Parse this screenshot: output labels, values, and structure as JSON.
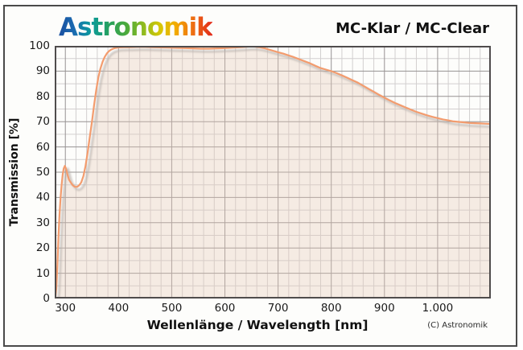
{
  "header": {
    "logo_text": "Astronomik",
    "title": "MC-Klar / MC-Clear"
  },
  "footer": {
    "copyright": "(C) Astronomik"
  },
  "chart_data": {
    "type": "area",
    "title": "MC-Klar / MC-Clear",
    "xlabel": "Wellenlänge / Wavelength [nm]",
    "ylabel": "Transmission [%]",
    "xlim": [
      280,
      1100
    ],
    "ylim": [
      0,
      100
    ],
    "grid": true,
    "x_minor_step": 20,
    "y_minor_step": 5,
    "x_ticks": [
      {
        "value": 300,
        "label": "300"
      },
      {
        "value": 400,
        "label": "400"
      },
      {
        "value": 500,
        "label": "500"
      },
      {
        "value": 600,
        "label": "600"
      },
      {
        "value": 700,
        "label": "700"
      },
      {
        "value": 800,
        "label": "800"
      },
      {
        "value": 900,
        "label": "900"
      },
      {
        "value": 1000,
        "label": "1.000"
      }
    ],
    "y_ticks": [
      {
        "value": 0,
        "label": "0"
      },
      {
        "value": 10,
        "label": "10"
      },
      {
        "value": 20,
        "label": "20"
      },
      {
        "value": 30,
        "label": "30"
      },
      {
        "value": 40,
        "label": "40"
      },
      {
        "value": 50,
        "label": "50"
      },
      {
        "value": 60,
        "label": "60"
      },
      {
        "value": 70,
        "label": "70"
      },
      {
        "value": 80,
        "label": "80"
      },
      {
        "value": 90,
        "label": "90"
      },
      {
        "value": 100,
        "label": "100"
      }
    ],
    "colors": {
      "line": "#f39c6e",
      "shadow": "#b8b0ab",
      "fill": "rgba(229,200,183,0.35)",
      "grid_minor": "#d2cfcf",
      "grid_major": "#969292"
    },
    "series": [
      {
        "name": "MC-Klar / MC-Clear transmission",
        "points": [
          [
            281,
            0
          ],
          [
            283,
            4
          ],
          [
            285,
            13
          ],
          [
            287,
            24
          ],
          [
            289,
            33
          ],
          [
            291,
            40
          ],
          [
            293,
            45
          ],
          [
            295,
            49
          ],
          [
            297,
            51.5
          ],
          [
            299,
            52.5
          ],
          [
            301,
            51.5
          ],
          [
            304,
            49
          ],
          [
            307,
            47
          ],
          [
            310,
            46
          ],
          [
            314,
            44.8
          ],
          [
            318,
            44.2
          ],
          [
            322,
            44.2
          ],
          [
            326,
            44.8
          ],
          [
            330,
            46
          ],
          [
            334,
            48.5
          ],
          [
            338,
            52.5
          ],
          [
            342,
            58
          ],
          [
            346,
            64
          ],
          [
            350,
            70
          ],
          [
            354,
            76.5
          ],
          [
            358,
            82.5
          ],
          [
            362,
            87.5
          ],
          [
            366,
            91
          ],
          [
            370,
            93.7
          ],
          [
            374,
            95.6
          ],
          [
            378,
            97
          ],
          [
            382,
            97.9
          ],
          [
            386,
            98.5
          ],
          [
            390,
            98.9
          ],
          [
            395,
            99.2
          ],
          [
            400,
            99.4
          ],
          [
            410,
            99.5
          ],
          [
            420,
            99.5
          ],
          [
            435,
            99.6
          ],
          [
            450,
            99.6
          ],
          [
            465,
            99.5
          ],
          [
            480,
            99.4
          ],
          [
            495,
            99.3
          ],
          [
            510,
            99.2
          ],
          [
            525,
            99.1
          ],
          [
            540,
            99.0
          ],
          [
            555,
            98.9
          ],
          [
            570,
            98.9
          ],
          [
            585,
            99.0
          ],
          [
            600,
            99.1
          ],
          [
            615,
            99.3
          ],
          [
            630,
            99.5
          ],
          [
            645,
            99.7
          ],
          [
            655,
            99.7
          ],
          [
            665,
            99.5
          ],
          [
            675,
            99.0
          ],
          [
            685,
            98.4
          ],
          [
            695,
            97.8
          ],
          [
            700,
            97.5
          ],
          [
            710,
            96.9
          ],
          [
            720,
            96.2
          ],
          [
            730,
            95.5
          ],
          [
            740,
            94.7
          ],
          [
            750,
            93.9
          ],
          [
            760,
            93.1
          ],
          [
            770,
            92.1
          ],
          [
            780,
            91.2
          ],
          [
            790,
            90.6
          ],
          [
            800,
            90.0
          ],
          [
            810,
            89.2
          ],
          [
            820,
            88.3
          ],
          [
            830,
            87.4
          ],
          [
            840,
            86.4
          ],
          [
            850,
            85.4
          ],
          [
            860,
            84.2
          ],
          [
            870,
            83.0
          ],
          [
            880,
            81.8
          ],
          [
            890,
            80.6
          ],
          [
            900,
            79.5
          ],
          [
            910,
            78.4
          ],
          [
            920,
            77.4
          ],
          [
            930,
            76.5
          ],
          [
            940,
            75.6
          ],
          [
            950,
            74.7
          ],
          [
            960,
            73.9
          ],
          [
            970,
            73.2
          ],
          [
            980,
            72.5
          ],
          [
            990,
            71.9
          ],
          [
            1000,
            71.4
          ],
          [
            1010,
            70.9
          ],
          [
            1020,
            70.5
          ],
          [
            1030,
            70.1
          ],
          [
            1040,
            69.9
          ],
          [
            1050,
            69.7
          ],
          [
            1060,
            69.5
          ],
          [
            1070,
            69.4
          ],
          [
            1080,
            69.3
          ],
          [
            1090,
            69.2
          ],
          [
            1100,
            69.1
          ]
        ]
      }
    ]
  }
}
